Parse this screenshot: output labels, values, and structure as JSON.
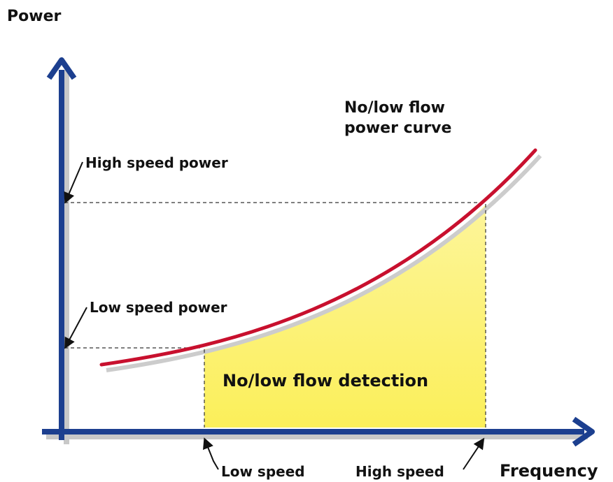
{
  "axes": {
    "y_label": "Power",
    "x_label": "Frequency"
  },
  "levels": {
    "high_speed_power": "High speed power",
    "low_speed_power": "Low speed power"
  },
  "speeds": {
    "low_speed": "Low speed",
    "high_speed": "High speed"
  },
  "curve_label": [
    "No/low flow",
    "power curve"
  ],
  "region_label": "No/low flow detection"
}
